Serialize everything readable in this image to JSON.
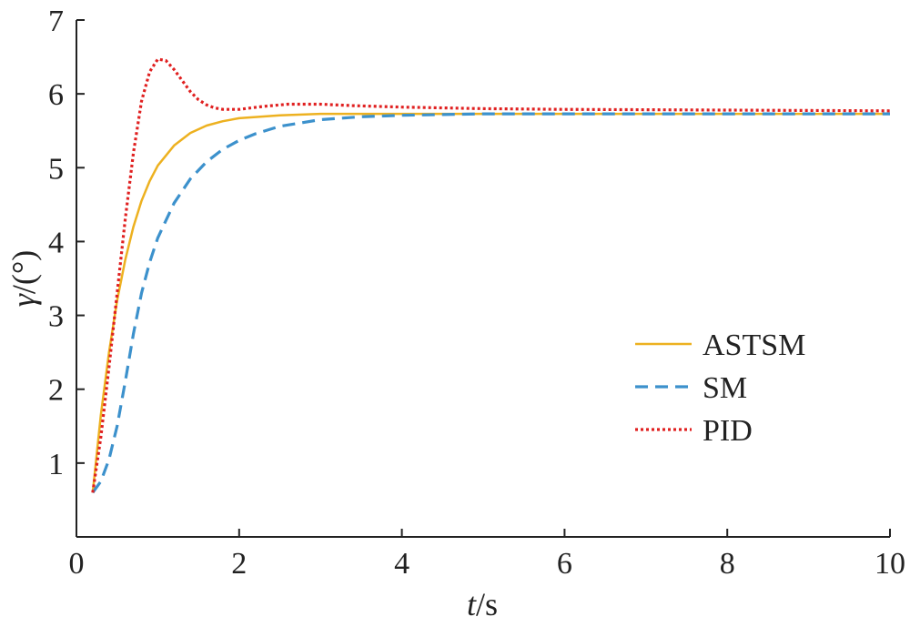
{
  "chart_data": {
    "type": "line",
    "title": "",
    "xlabel": {
      "var": "t",
      "unit": "s"
    },
    "ylabel": {
      "var": "γ",
      "unit": "(°)"
    },
    "xlim": [
      0,
      10
    ],
    "ylim": [
      0,
      7
    ],
    "xticks": [
      "0",
      "2",
      "4",
      "6",
      "8",
      "10"
    ],
    "yticks": [
      "1",
      "2",
      "3",
      "4",
      "5",
      "6",
      "7"
    ],
    "grid": false,
    "legend_position": "right",
    "series": [
      {
        "name": "ASTSM",
        "color": "#EDB120",
        "style": "solid",
        "x": [
          0.2,
          0.3,
          0.4,
          0.5,
          0.6,
          0.7,
          0.8,
          0.9,
          1.0,
          1.2,
          1.4,
          1.6,
          1.8,
          2.0,
          2.5,
          3.0,
          3.5,
          4.0,
          5.0,
          6.0,
          8.0,
          10.0
        ],
        "y": [
          0.6,
          1.65,
          2.5,
          3.2,
          3.75,
          4.2,
          4.55,
          4.82,
          5.03,
          5.3,
          5.47,
          5.57,
          5.63,
          5.67,
          5.71,
          5.73,
          5.73,
          5.73,
          5.73,
          5.73,
          5.73,
          5.73
        ]
      },
      {
        "name": "SM",
        "color": "#3C91CC",
        "style": "dashed",
        "x": [
          0.2,
          0.3,
          0.4,
          0.5,
          0.6,
          0.7,
          0.8,
          0.9,
          1.0,
          1.2,
          1.4,
          1.6,
          1.8,
          2.0,
          2.2,
          2.5,
          3.0,
          3.5,
          4.0,
          4.5,
          5.0,
          6.0,
          8.0,
          10.0
        ],
        "y": [
          0.6,
          0.75,
          1.05,
          1.5,
          2.1,
          2.75,
          3.3,
          3.72,
          4.05,
          4.52,
          4.85,
          5.08,
          5.25,
          5.37,
          5.46,
          5.56,
          5.65,
          5.69,
          5.71,
          5.72,
          5.73,
          5.73,
          5.73,
          5.73
        ]
      },
      {
        "name": "PID",
        "color": "#E02020",
        "style": "dotted",
        "x": [
          0.2,
          0.3,
          0.4,
          0.5,
          0.6,
          0.7,
          0.8,
          0.9,
          1.0,
          1.1,
          1.2,
          1.3,
          1.4,
          1.5,
          1.6,
          1.7,
          1.8,
          2.0,
          2.3,
          2.6,
          3.0,
          3.4,
          4.0,
          5.0,
          6.0,
          8.0,
          10.0
        ],
        "y": [
          0.6,
          1.35,
          2.3,
          3.3,
          4.3,
          5.2,
          5.9,
          6.3,
          6.47,
          6.45,
          6.33,
          6.18,
          6.03,
          5.92,
          5.85,
          5.81,
          5.79,
          5.79,
          5.83,
          5.86,
          5.86,
          5.84,
          5.82,
          5.8,
          5.79,
          5.78,
          5.77
        ]
      }
    ]
  }
}
